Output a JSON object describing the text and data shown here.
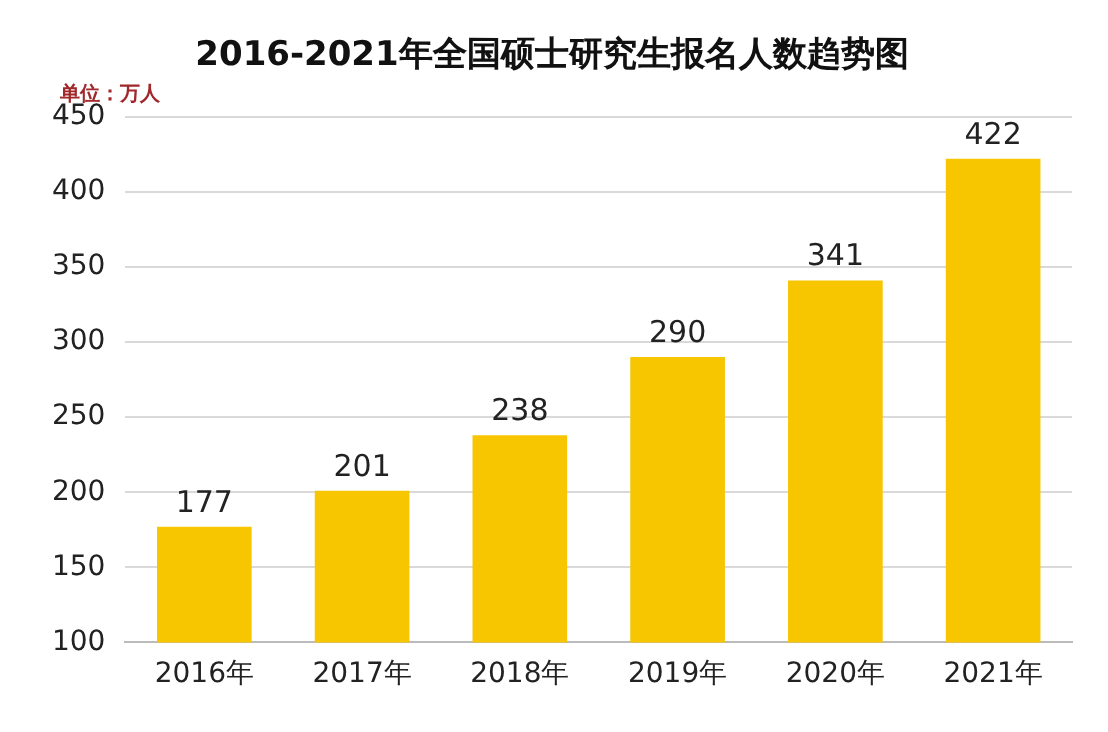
{
  "chart_data": {
    "type": "bar",
    "title": "2016-2021年全国硕士研究生报名人数趋势图",
    "annotations": [
      "单位：万人"
    ],
    "categories": [
      "2016年",
      "2017年",
      "2018年",
      "2019年",
      "2020年",
      "2021年"
    ],
    "values": [
      177,
      201,
      238,
      290,
      341,
      422
    ],
    "color": "#f7c600",
    "ylim": [
      100,
      450
    ],
    "yticks": [
      100,
      150,
      200,
      250,
      300,
      350,
      400,
      450
    ],
    "grid": "y",
    "data_labels": true,
    "legend": false
  }
}
